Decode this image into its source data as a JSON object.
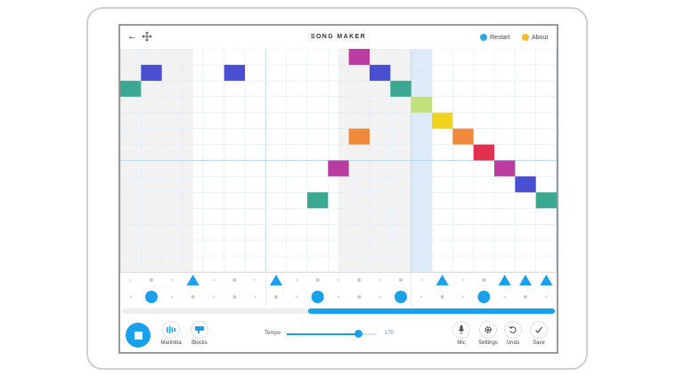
{
  "header": {
    "title": "SONG MAKER",
    "back_icon": "arrow-left-icon",
    "move_icon": "move-arrows-icon",
    "restart_label": "Restart",
    "about_label": "About",
    "restart_color": "#29a8e8",
    "about_color": "#f5b82e"
  },
  "melody": {
    "cols": 21,
    "rows": 14,
    "bars": 6,
    "shaded_bars": [
      0,
      3
    ],
    "playhead_col": 14,
    "notes": [
      {
        "col": 0,
        "row": 2,
        "color": "#3ba991"
      },
      {
        "col": 1,
        "row": 1,
        "color": "#4a4fd1"
      },
      {
        "col": 5,
        "row": 1,
        "color": "#4a4fd1"
      },
      {
        "col": 9,
        "row": 9,
        "color": "#3ba991"
      },
      {
        "col": 10,
        "row": 7,
        "color": "#bc3ba0"
      },
      {
        "col": 11,
        "row": 5,
        "color": "#f08a3a"
      },
      {
        "col": 11,
        "row": 0,
        "color": "#bc3ba0"
      },
      {
        "col": 12,
        "row": 1,
        "color": "#4a4fd1"
      },
      {
        "col": 13,
        "row": 2,
        "color": "#3ba991"
      },
      {
        "col": 14,
        "row": 3,
        "color": "#bfe07a"
      },
      {
        "col": 15,
        "row": 4,
        "color": "#f0d21f"
      },
      {
        "col": 16,
        "row": 5,
        "color": "#f08a3a"
      },
      {
        "col": 17,
        "row": 6,
        "color": "#e3304f"
      },
      {
        "col": 18,
        "row": 7,
        "color": "#bc3ba0"
      },
      {
        "col": 19,
        "row": 8,
        "color": "#4a4fd1"
      },
      {
        "col": 20,
        "row": 9,
        "color": "#3ba991"
      }
    ]
  },
  "percussion": {
    "triangles": [
      3,
      7,
      15,
      18,
      19,
      20
    ],
    "circles": [
      1,
      9,
      13,
      17
    ],
    "color": "#1aa1ee"
  },
  "progress": {
    "fraction_start": 0.43,
    "fraction_end": 1.0,
    "color": "#1aa1ee"
  },
  "toolbar": {
    "play_icon": "stop-square-icon",
    "instrument_label": "Marimba",
    "instrument_icon": "marimba-icon",
    "drum_label": "Blocks",
    "drum_icon": "blocks-icon",
    "tempo_label": "Tempo",
    "tempo_value": "170",
    "tempo_fraction": 0.8,
    "mic_label": "Mic",
    "settings_label": "Settings",
    "undo_label": "Undo",
    "save_label": "Save"
  }
}
